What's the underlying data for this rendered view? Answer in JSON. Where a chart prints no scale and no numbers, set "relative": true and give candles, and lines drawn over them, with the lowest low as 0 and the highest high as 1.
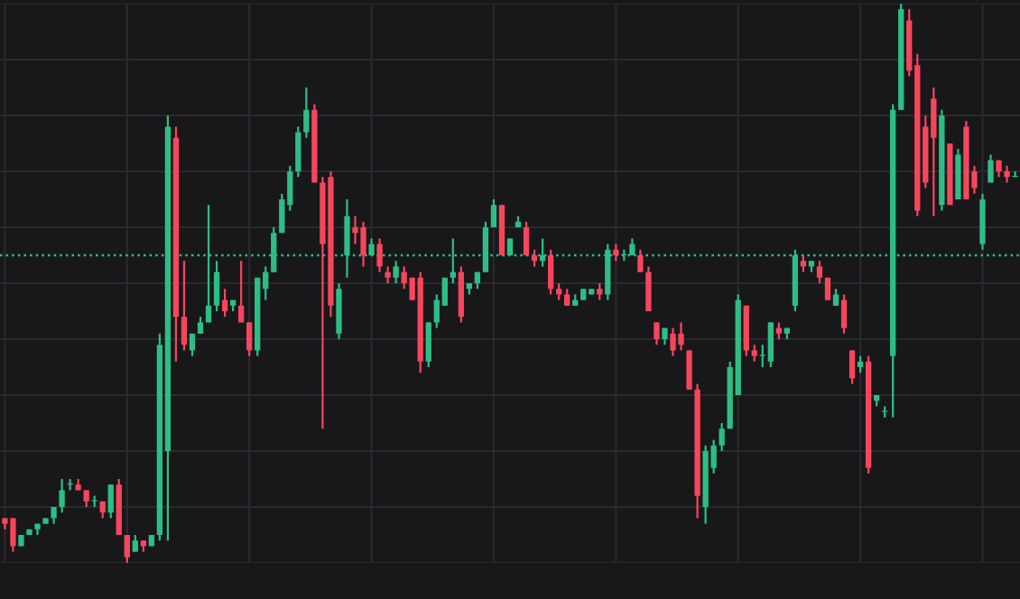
{
  "chart_data": {
    "type": "candlestick",
    "relative": true,
    "categories": [
      null,
      null,
      null,
      null,
      null,
      null,
      null,
      null,
      null,
      null,
      null,
      null,
      null,
      null,
      null,
      null,
      null,
      null,
      null,
      null,
      null,
      null,
      null,
      null,
      null,
      null,
      null,
      null,
      null,
      null,
      null,
      null,
      null,
      null,
      null,
      null,
      null,
      null,
      null,
      null,
      null,
      null,
      null,
      null,
      null,
      null,
      null,
      null,
      null,
      null,
      null,
      null,
      null,
      null,
      null,
      null,
      null,
      null,
      null,
      null,
      null,
      null,
      null,
      null,
      null,
      null,
      null,
      null,
      null,
      null,
      null,
      null,
      null,
      null,
      null,
      null,
      null,
      null,
      null,
      null,
      null,
      null,
      null,
      null,
      null,
      null,
      null,
      null,
      null,
      null,
      null,
      null,
      null,
      null,
      null,
      null,
      null,
      null,
      null,
      null,
      null,
      null,
      null,
      null,
      null,
      null,
      null,
      null,
      null,
      null,
      null,
      null,
      null,
      null,
      null,
      null,
      null,
      null,
      null,
      null,
      null,
      null,
      null,
      null,
      null
    ],
    "colors": [
      "#f6465d",
      "#f6465d",
      "#2ebd85",
      "#2ebd85",
      "#2ebd85",
      "#2ebd85",
      "#2ebd85",
      "#2ebd85",
      "#2ebd85",
      "#f6465d",
      "#f6465d",
      "#2ebd85",
      "#f6465d",
      "#2ebd85",
      "#f6465d",
      "#f6465d",
      "#2ebd85",
      "#f6465d",
      "#2ebd85",
      "#2ebd85",
      "#2ebd85",
      "#f6465d",
      "#f6465d",
      "#2ebd85",
      "#2ebd85",
      "#2ebd85",
      "#2ebd85",
      "#f6465d",
      "#2ebd85",
      "#f6465d",
      "#f6465d",
      "#2ebd85",
      "#2ebd85",
      "#2ebd85",
      "#2ebd85",
      "#2ebd85",
      "#2ebd85",
      "#2ebd85",
      "#f6465d",
      "#f6465d",
      "#f6465d",
      "#2ebd85",
      "#2ebd85",
      "#f6465d",
      "#f6465d",
      "#2ebd85",
      "#f6465d",
      "#f6465d",
      "#2ebd85",
      "#f6465d",
      "#f6465d",
      "#f6465d",
      "#2ebd85",
      "#2ebd85",
      "#2ebd85",
      "#2ebd85",
      "#f6465d",
      "#2ebd85",
      "#2ebd85",
      "#2ebd85",
      "#2ebd85",
      "#f6465d",
      "#2ebd85",
      "#2ebd85",
      "#f6465d",
      "#f6465d",
      "#2ebd85",
      "#f6465d",
      "#f6465d",
      "#f6465d",
      "#2ebd85",
      "#2ebd85",
      "#2ebd85",
      "#f6465d",
      "#2ebd85",
      "#f6465d",
      "#2ebd85",
      "#2ebd85",
      "#f6465d",
      "#f6465d",
      "#f6465d",
      "#2ebd85",
      "#f6465d",
      "#f6465d",
      "#f6465d",
      "#f6465d",
      "#2ebd85",
      "#2ebd85",
      "#2ebd85",
      "#2ebd85",
      "#2ebd85",
      "#f6465d",
      "#f6465d",
      "#2ebd85",
      "#2ebd85",
      "#f6465d",
      "#2ebd85",
      "#2ebd85",
      "#f6465d",
      "#2ebd85",
      "#f6465d",
      "#f6465d",
      "#2ebd85",
      "#f6465d",
      "#f6465d",
      "#2ebd85",
      "#f6465d",
      "#2ebd85",
      "#2ebd85",
      "#2ebd85",
      "#2ebd85",
      "#f6465d",
      "#f6465d",
      "#f6465d",
      "#f6465d",
      "#2ebd85",
      "#f6465d",
      "#2ebd85",
      "#f6465d",
      "#f6465d",
      "#2ebd85",
      "#2ebd85",
      "#f6465d",
      "#f6465d",
      "#2ebd85"
    ],
    "grid": true,
    "tick_labels": false,
    "ref_lines": [
      {
        "axis": "y",
        "value": 0.55,
        "color": "#2ebd85",
        "line_style": "dotted"
      }
    ],
    "ohlc": [
      [
        0.08,
        0.08,
        0.06,
        0.07
      ],
      [
        0.08,
        0.08,
        0.02,
        0.03
      ],
      [
        0.03,
        0.05,
        0.03,
        0.05
      ],
      [
        0.05,
        0.06,
        0.05,
        0.06
      ],
      [
        0.06,
        0.07,
        0.05,
        0.07
      ],
      [
        0.07,
        0.08,
        0.07,
        0.08
      ],
      [
        0.08,
        0.1,
        0.07,
        0.1
      ],
      [
        0.1,
        0.15,
        0.09,
        0.13
      ],
      [
        0.14,
        0.15,
        0.13,
        0.14
      ],
      [
        0.14,
        0.15,
        0.13,
        0.13
      ],
      [
        0.13,
        0.13,
        0.1,
        0.11
      ],
      [
        0.11,
        0.12,
        0.1,
        0.11
      ],
      [
        0.11,
        0.11,
        0.08,
        0.09
      ],
      [
        0.09,
        0.14,
        0.08,
        0.14
      ],
      [
        0.14,
        0.15,
        0.05,
        0.05
      ],
      [
        0.05,
        0.05,
        0,
        0.01
      ],
      [
        0.02,
        0.05,
        0.02,
        0.04
      ],
      [
        0.04,
        0.04,
        0.02,
        0.03
      ],
      [
        0.03,
        0.05,
        0.03,
        0.05
      ],
      [
        0.05,
        0.41,
        0.04,
        0.39
      ],
      [
        0.2,
        0.8,
        0.04,
        0.78
      ],
      [
        0.76,
        0.78,
        0.36,
        0.44
      ],
      [
        0.44,
        0.54,
        0.38,
        0.39
      ],
      [
        0.38,
        0.41,
        0.37,
        0.41
      ],
      [
        0.41,
        0.44,
        0.41,
        0.43
      ],
      [
        0.43,
        0.64,
        0.43,
        0.46
      ],
      [
        0.46,
        0.54,
        0.45,
        0.52
      ],
      [
        0.47,
        0.49,
        0.44,
        0.45
      ],
      [
        0.46,
        0.47,
        0.45,
        0.47
      ],
      [
        0.46,
        0.54,
        0.43,
        0.43
      ],
      [
        0.43,
        0.43,
        0.37,
        0.38
      ],
      [
        0.38,
        0.51,
        0.37,
        0.51
      ],
      [
        0.49,
        0.53,
        0.47,
        0.52
      ],
      [
        0.52,
        0.6,
        0.52,
        0.59
      ],
      [
        0.59,
        0.66,
        0.59,
        0.65
      ],
      [
        0.64,
        0.71,
        0.63,
        0.7
      ],
      [
        0.7,
        0.78,
        0.69,
        0.77
      ],
      [
        0.77,
        0.85,
        0.76,
        0.81
      ],
      [
        0.81,
        0.82,
        0.68,
        0.68
      ],
      [
        0.68,
        0.69,
        0.24,
        0.57
      ],
      [
        0.69,
        0.7,
        0.44,
        0.46
      ],
      [
        0.41,
        0.5,
        0.4,
        0.49
      ],
      [
        0.55,
        0.65,
        0.51,
        0.62
      ],
      [
        0.6,
        0.62,
        0.57,
        0.59
      ],
      [
        0.6,
        0.61,
        0.53,
        0.55
      ],
      [
        0.55,
        0.58,
        0.55,
        0.57
      ],
      [
        0.57,
        0.58,
        0.52,
        0.53
      ],
      [
        0.52,
        0.53,
        0.5,
        0.51
      ],
      [
        0.51,
        0.54,
        0.5,
        0.53
      ],
      [
        0.52,
        0.53,
        0.49,
        0.5
      ],
      [
        0.51,
        0.51,
        0.47,
        0.47
      ],
      [
        0.51,
        0.52,
        0.34,
        0.36
      ],
      [
        0.36,
        0.43,
        0.35,
        0.43
      ],
      [
        0.43,
        0.48,
        0.42,
        0.47
      ],
      [
        0.46,
        0.51,
        0.46,
        0.51
      ],
      [
        0.51,
        0.58,
        0.5,
        0.52
      ],
      [
        0.52,
        0.53,
        0.43,
        0.44
      ],
      [
        0.49,
        0.5,
        0.48,
        0.5
      ],
      [
        0.5,
        0.52,
        0.49,
        0.52
      ],
      [
        0.52,
        0.61,
        0.52,
        0.6
      ],
      [
        0.6,
        0.65,
        0.6,
        0.64
      ],
      [
        0.64,
        0.64,
        0.55,
        0.55
      ],
      [
        0.55,
        0.58,
        0.55,
        0.58
      ],
      [
        0.6,
        0.62,
        0.6,
        0.61
      ],
      [
        0.6,
        0.61,
        0.55,
        0.55
      ],
      [
        0.55,
        0.56,
        0.53,
        0.54
      ],
      [
        0.54,
        0.58,
        0.53,
        0.55
      ],
      [
        0.55,
        0.56,
        0.48,
        0.49
      ],
      [
        0.49,
        0.5,
        0.47,
        0.48
      ],
      [
        0.48,
        0.49,
        0.46,
        0.46
      ],
      [
        0.46,
        0.48,
        0.46,
        0.47
      ],
      [
        0.47,
        0.49,
        0.47,
        0.49
      ],
      [
        0.48,
        0.49,
        0.48,
        0.49
      ],
      [
        0.49,
        0.5,
        0.47,
        0.48
      ],
      [
        0.48,
        0.57,
        0.47,
        0.56
      ],
      [
        0.56,
        0.57,
        0.54,
        0.55
      ],
      [
        0.55,
        0.56,
        0.54,
        0.55
      ],
      [
        0.55,
        0.58,
        0.55,
        0.57
      ],
      [
        0.55,
        0.56,
        0.52,
        0.52
      ],
      [
        0.52,
        0.53,
        0.45,
        0.45
      ],
      [
        0.43,
        0.43,
        0.39,
        0.4
      ],
      [
        0.4,
        0.42,
        0.39,
        0.42
      ],
      [
        0.41,
        0.42,
        0.37,
        0.38
      ],
      [
        0.41,
        0.43,
        0.38,
        0.39
      ],
      [
        0.38,
        0.38,
        0.31,
        0.31
      ],
      [
        0.31,
        0.32,
        0.08,
        0.12
      ],
      [
        0.1,
        0.21,
        0.07,
        0.2
      ],
      [
        0.17,
        0.22,
        0.16,
        0.21
      ],
      [
        0.21,
        0.25,
        0.2,
        0.24
      ],
      [
        0.24,
        0.36,
        0.24,
        0.35
      ],
      [
        0.3,
        0.48,
        0.3,
        0.47
      ],
      [
        0.46,
        0.46,
        0.37,
        0.38
      ],
      [
        0.38,
        0.39,
        0.36,
        0.37
      ],
      [
        0.37,
        0.39,
        0.35,
        0.37
      ],
      [
        0.36,
        0.43,
        0.35,
        0.43
      ],
      [
        0.42,
        0.43,
        0.4,
        0.41
      ],
      [
        0.41,
        0.42,
        0.4,
        0.42
      ],
      [
        0.46,
        0.56,
        0.45,
        0.55
      ],
      [
        0.54,
        0.55,
        0.52,
        0.53
      ],
      [
        0.53,
        0.54,
        0.52,
        0.54
      ],
      [
        0.53,
        0.54,
        0.5,
        0.51
      ],
      [
        0.51,
        0.51,
        0.47,
        0.47
      ],
      [
        0.46,
        0.49,
        0.46,
        0.48
      ],
      [
        0.47,
        0.48,
        0.41,
        0.42
      ],
      [
        0.38,
        0.38,
        0.32,
        0.33
      ],
      [
        0.35,
        0.37,
        0.34,
        0.36
      ],
      [
        0.36,
        0.37,
        0.16,
        0.17
      ],
      [
        0.29,
        0.3,
        0.28,
        0.3
      ],
      [
        0.27,
        0.28,
        0.26,
        0.27
      ],
      [
        0.37,
        0.82,
        0.26,
        0.81
      ],
      [
        0.81,
        1,
        0.81,
        0.99
      ],
      [
        0.97,
        0.99,
        0.87,
        0.88
      ],
      [
        0.89,
        0.91,
        0.62,
        0.63
      ],
      [
        0.78,
        0.8,
        0.67,
        0.68
      ],
      [
        0.83,
        0.85,
        0.62,
        0.76
      ],
      [
        0.64,
        0.81,
        0.63,
        0.8
      ],
      [
        0.75,
        0.75,
        0.64,
        0.64
      ],
      [
        0.65,
        0.74,
        0.65,
        0.73
      ],
      [
        0.78,
        0.79,
        0.65,
        0.65
      ],
      [
        0.7,
        0.71,
        0.66,
        0.67
      ],
      [
        0.57,
        0.66,
        0.56,
        0.65
      ],
      [
        0.68,
        0.73,
        0.68,
        0.72
      ],
      [
        0.72,
        0.72,
        0.69,
        0.7
      ],
      [
        0.7,
        0.71,
        0.68,
        0.69
      ],
      [
        0.69,
        0.7,
        0.69,
        0.69
      ]
    ]
  }
}
